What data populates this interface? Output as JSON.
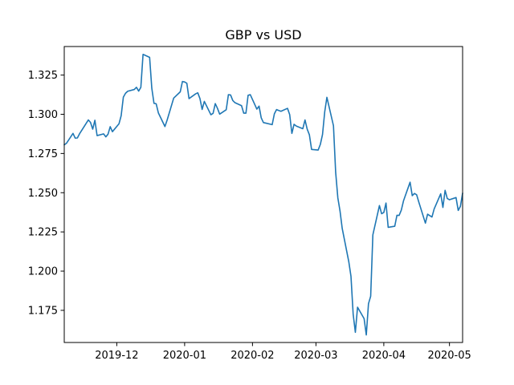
{
  "chart_data": {
    "type": "line",
    "title": "GBP vs USD",
    "xlabel": "",
    "ylabel": "",
    "grid": false,
    "legend": "none",
    "line_color": "#1f77b4",
    "xlim": [
      "2019-11-07",
      "2020-05-07"
    ],
    "ylim": [
      1.1545,
      1.3432
    ],
    "x_ticks": [
      "2019-12",
      "2020-01",
      "2020-02",
      "2020-03",
      "2020-04",
      "2020-05"
    ],
    "y_ticks": [
      "1.175",
      "1.200",
      "1.225",
      "1.250",
      "1.275",
      "1.300",
      "1.325"
    ],
    "series": [
      {
        "x": [
          "2019-11-07",
          "2019-11-08",
          "2019-11-11",
          "2019-11-12",
          "2019-11-13",
          "2019-11-14",
          "2019-11-15",
          "2019-11-18",
          "2019-11-19",
          "2019-11-20",
          "2019-11-21",
          "2019-11-22",
          "2019-11-25",
          "2019-11-26",
          "2019-11-27",
          "2019-11-28",
          "2019-11-29",
          "2019-12-02",
          "2019-12-03",
          "2019-12-04",
          "2019-12-05",
          "2019-12-06",
          "2019-12-09",
          "2019-12-10",
          "2019-12-11",
          "2019-12-12",
          "2019-12-13",
          "2019-12-16",
          "2019-12-17",
          "2019-12-18",
          "2019-12-19",
          "2019-12-20",
          "2019-12-23",
          "2019-12-24",
          "2019-12-27",
          "2019-12-30",
          "2019-12-31",
          "2020-01-01",
          "2020-01-02",
          "2020-01-03",
          "2020-01-06",
          "2020-01-07",
          "2020-01-08",
          "2020-01-09",
          "2020-01-10",
          "2020-01-13",
          "2020-01-14",
          "2020-01-15",
          "2020-01-16",
          "2020-01-17",
          "2020-01-20",
          "2020-01-21",
          "2020-01-22",
          "2020-01-23",
          "2020-01-24",
          "2020-01-27",
          "2020-01-28",
          "2020-01-29",
          "2020-01-30",
          "2020-01-31",
          "2020-02-03",
          "2020-02-04",
          "2020-02-05",
          "2020-02-06",
          "2020-02-07",
          "2020-02-10",
          "2020-02-11",
          "2020-02-12",
          "2020-02-13",
          "2020-02-14",
          "2020-02-17",
          "2020-02-18",
          "2020-02-19",
          "2020-02-20",
          "2020-02-21",
          "2020-02-24",
          "2020-02-25",
          "2020-02-26",
          "2020-02-27",
          "2020-02-28",
          "2020-03-02",
          "2020-03-03",
          "2020-03-04",
          "2020-03-05",
          "2020-03-06",
          "2020-03-09",
          "2020-03-10",
          "2020-03-11",
          "2020-03-12",
          "2020-03-13",
          "2020-03-16",
          "2020-03-17",
          "2020-03-18",
          "2020-03-19",
          "2020-03-20",
          "2020-03-23",
          "2020-03-24",
          "2020-03-25",
          "2020-03-26",
          "2020-03-27",
          "2020-03-30",
          "2020-03-31",
          "2020-04-01",
          "2020-04-02",
          "2020-04-03",
          "2020-04-06",
          "2020-04-07",
          "2020-04-08",
          "2020-04-09",
          "2020-04-10",
          "2020-04-13",
          "2020-04-14",
          "2020-04-15",
          "2020-04-16",
          "2020-04-17",
          "2020-04-20",
          "2020-04-21",
          "2020-04-22",
          "2020-04-23",
          "2020-04-24",
          "2020-04-27",
          "2020-04-28",
          "2020-04-29",
          "2020-04-30",
          "2020-05-01",
          "2020-05-04",
          "2020-05-05",
          "2020-05-06",
          "2020-05-07"
        ],
        "y": [
          1.2805,
          1.2815,
          1.2878,
          1.2848,
          1.2849,
          1.2876,
          1.2898,
          1.2964,
          1.2948,
          1.2905,
          1.2962,
          1.2864,
          1.2875,
          1.2856,
          1.2873,
          1.2921,
          1.2889,
          1.2939,
          1.2991,
          1.3109,
          1.3134,
          1.3147,
          1.3158,
          1.3172,
          1.3148,
          1.3172,
          1.3382,
          1.3363,
          1.3166,
          1.307,
          1.3067,
          1.3009,
          1.2922,
          1.2963,
          1.3103,
          1.3143,
          1.3209,
          1.3206,
          1.3198,
          1.31,
          1.313,
          1.3137,
          1.31,
          1.3031,
          1.3082,
          1.2997,
          1.3006,
          1.3068,
          1.3038,
          1.3001,
          1.3029,
          1.3125,
          1.3123,
          1.3088,
          1.3074,
          1.3055,
          1.3007,
          1.3007,
          1.3121,
          1.3125,
          1.3033,
          1.3052,
          1.2977,
          1.2947,
          1.2944,
          1.2934,
          1.3003,
          1.303,
          1.3024,
          1.3019,
          1.3038,
          1.2998,
          1.2878,
          1.2936,
          1.2925,
          1.2908,
          1.2964,
          1.2905,
          1.2869,
          1.2776,
          1.2772,
          1.2808,
          1.2871,
          1.3015,
          1.3108,
          1.2927,
          1.2631,
          1.2467,
          1.2383,
          1.2272,
          1.206,
          1.1967,
          1.1725,
          1.161,
          1.177,
          1.1697,
          1.1593,
          1.1792,
          1.184,
          1.2231,
          1.2418,
          1.2366,
          1.2374,
          1.2434,
          1.2279,
          1.2286,
          1.2356,
          1.2355,
          1.2389,
          1.2448,
          1.2567,
          1.2481,
          1.2495,
          1.2487,
          1.244,
          1.2306,
          1.2363,
          1.2354,
          1.2345,
          1.2396,
          1.2493,
          1.2406,
          1.2515,
          1.2463,
          1.2455,
          1.2469,
          1.2387,
          1.2413,
          1.2497
        ],
        "color": "#1f77b4"
      }
    ]
  }
}
